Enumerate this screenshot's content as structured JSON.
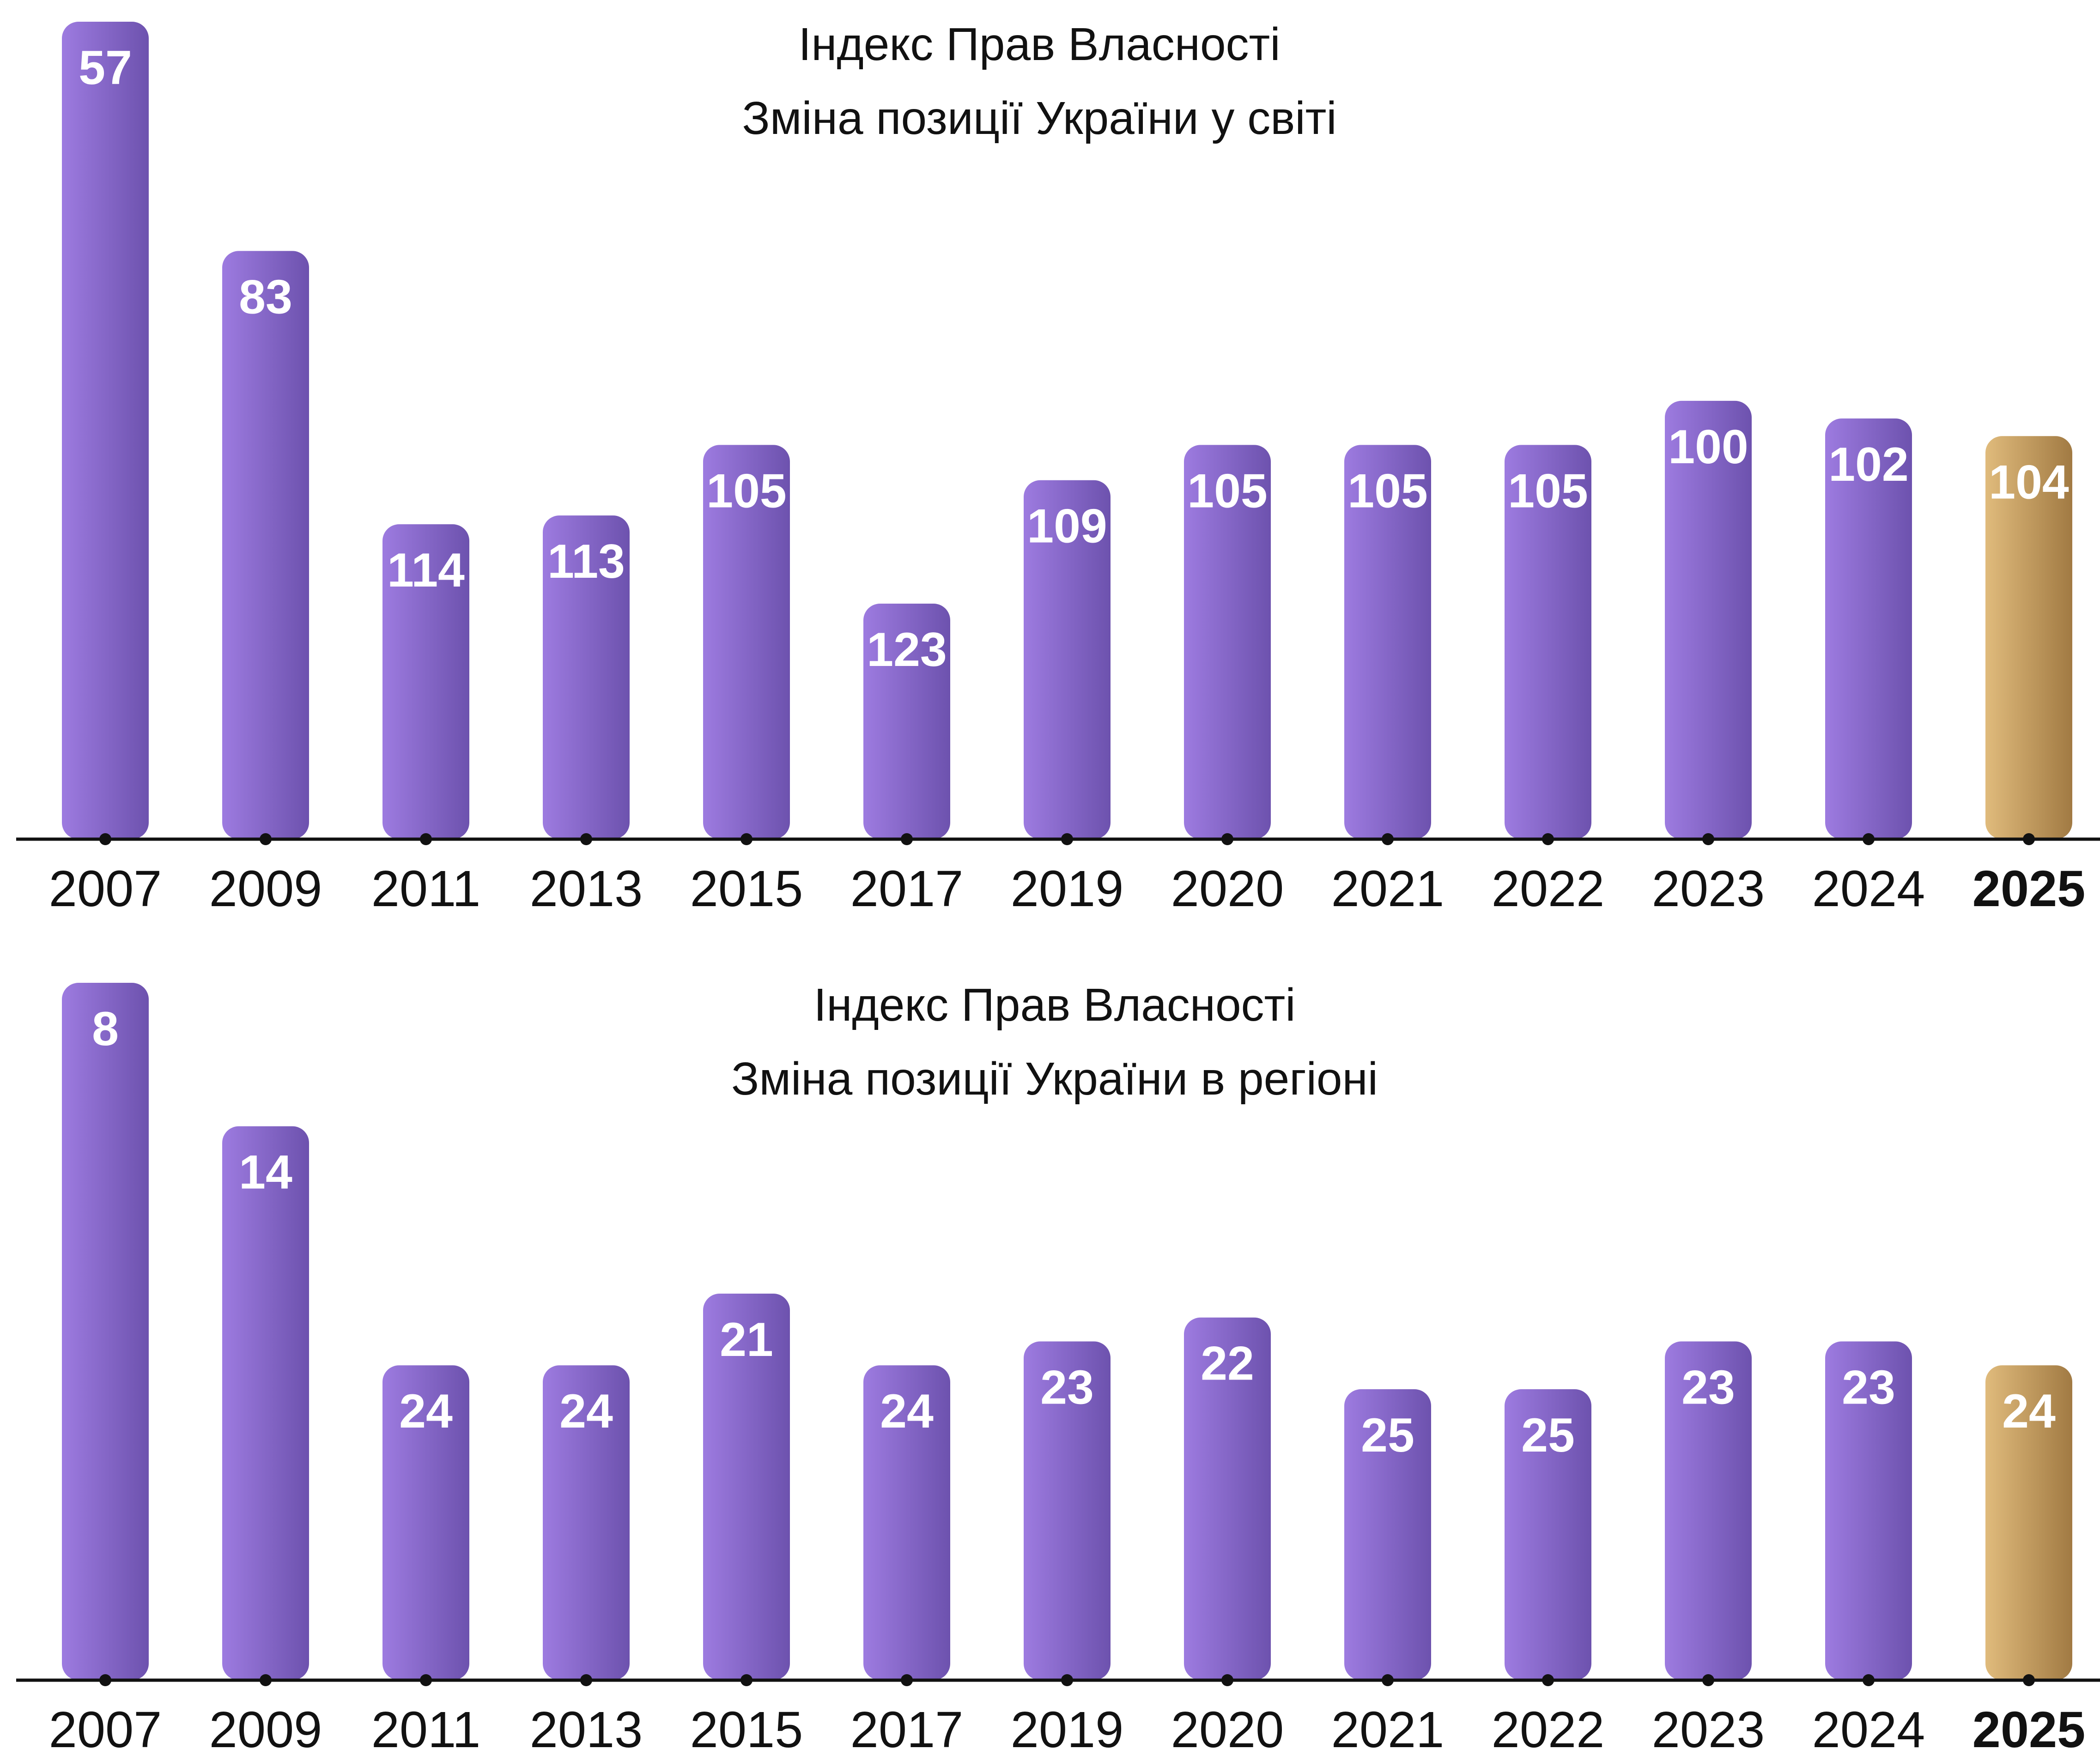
{
  "colors": {
    "bar_top": "#9d7be0",
    "bar_bottom": "#6d52ae",
    "highlight_top": "#e0bb7c",
    "highlight_bottom": "#a17a43",
    "axis": "#111111",
    "text": "#111111"
  },
  "chart_data": [
    {
      "type": "bar",
      "title": "Індекс Прав Власності",
      "subtitle": "Зміна позиції України у світі",
      "categories": [
        "2007",
        "2009",
        "2011",
        "2013",
        "2015",
        "2017",
        "2019",
        "2020",
        "2021",
        "2022",
        "2023",
        "2024",
        "2025"
      ],
      "values": [
        57,
        83,
        114,
        113,
        105,
        123,
        109,
        105,
        105,
        105,
        100,
        102,
        104
      ],
      "value_meaning": "rank (lower rank = taller bar)",
      "highlight_category": "2025",
      "grid": false,
      "xlabel": "",
      "ylabel": ""
    },
    {
      "type": "bar",
      "title": "Індекс Прав Власності",
      "subtitle": "Зміна позиції України в регіоні",
      "categories": [
        "2007",
        "2009",
        "2011",
        "2013",
        "2015",
        "2017",
        "2019",
        "2020",
        "2021",
        "2022",
        "2023",
        "2024",
        "2025"
      ],
      "values": [
        8,
        14,
        24,
        24,
        21,
        24,
        23,
        22,
        25,
        25,
        23,
        23,
        24
      ],
      "value_meaning": "rank (lower rank = taller bar)",
      "highlight_category": "2025",
      "grid": false,
      "xlabel": "",
      "ylabel": ""
    }
  ]
}
